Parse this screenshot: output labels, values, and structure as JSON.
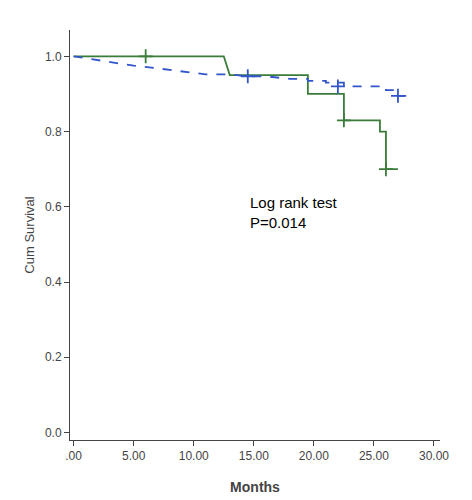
{
  "chart_data": {
    "type": "line",
    "xlabel": "Months",
    "ylabel": "Cum Survival",
    "xlim": [
      -0.3,
      30.5
    ],
    "ylim": [
      -0.02,
      1.07
    ],
    "xticks": [
      {
        "value": 0.0,
        "label": ".00"
      },
      {
        "value": 5.0,
        "label": "5.00"
      },
      {
        "value": 10.0,
        "label": "10.00"
      },
      {
        "value": 15.0,
        "label": "15.00"
      },
      {
        "value": 20.0,
        "label": "20.00"
      },
      {
        "value": 25.0,
        "label": "25.00"
      },
      {
        "value": 30.0,
        "label": "30.00"
      }
    ],
    "yticks": [
      {
        "value": 0.0,
        "label": "0.0"
      },
      0.2,
      0.4,
      0.6,
      0.8,
      {
        "value": 1.0,
        "label": "1.0"
      }
    ],
    "grid": false,
    "annotations": [
      {
        "text": "Log rank test\nP=0.014",
        "x": 14.5,
        "y": 0.64
      }
    ],
    "series": [
      {
        "type": "line",
        "color": "#3a7d3a",
        "line_style": "solid",
        "x": [
          0.0,
          6.0,
          6.0,
          12.5,
          12.5,
          13.0,
          13.0,
          19.5,
          19.5,
          22.5,
          22.5,
          25.5,
          25.5,
          26.0,
          26.0,
          27.0
        ],
        "values": [
          1.0,
          1.0,
          1.0,
          1.0,
          1.0,
          0.95,
          0.95,
          0.95,
          0.9,
          0.9,
          0.83,
          0.83,
          0.8,
          0.8,
          0.7,
          0.7
        ]
      },
      {
        "type": "line",
        "color": "#3355cc",
        "line_style": "dashed",
        "x": [
          0.0,
          1.0,
          2.0,
          3.5,
          5.0,
          7.0,
          9.0,
          11.0,
          13.0,
          14.5,
          16.0,
          18.0,
          19.5,
          19.5,
          21.0,
          21.0,
          22.5,
          22.5,
          26.0,
          26.0,
          27.0,
          27.0,
          28.0
        ],
        "values": [
          1.0,
          0.995,
          0.99,
          0.983,
          0.975,
          0.968,
          0.96,
          0.952,
          0.952,
          0.947,
          0.947,
          0.94,
          0.94,
          0.935,
          0.935,
          0.93,
          0.93,
          0.92,
          0.92,
          0.91,
          0.91,
          0.895,
          0.895
        ]
      },
      {
        "type": "scatter",
        "color": "#3a7d3a",
        "marker": "cross",
        "x": [
          6.0,
          22.5,
          26.0
        ],
        "values": [
          1.0,
          0.83,
          0.7
        ]
      },
      {
        "type": "scatter",
        "color": "#3355cc",
        "marker": "cross",
        "x": [
          14.5,
          22.0,
          27.0
        ],
        "values": [
          0.947,
          0.92,
          0.895
        ]
      }
    ]
  }
}
